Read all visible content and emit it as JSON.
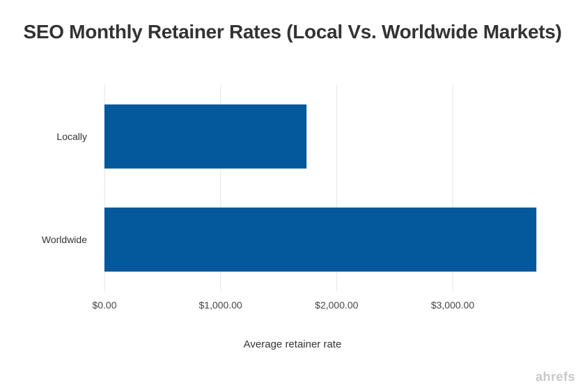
{
  "chart_data": {
    "type": "bar",
    "orientation": "horizontal",
    "title": "SEO Monthly Retainer Rates (Local Vs. Worldwide Markets)",
    "categories": [
      "Locally",
      "Worldwide"
    ],
    "values": [
      1741,
      3721
    ],
    "xlabel": "Average retainer rate",
    "ylabel": "",
    "xlim": [
      0,
      3750
    ],
    "x_ticks": [
      0,
      1000,
      2000,
      3000
    ],
    "x_tick_labels": [
      "$0.00",
      "$1,000.00",
      "$2,000.00",
      "$3,000.00"
    ],
    "grid": "vertical",
    "bar_color": "#03599c",
    "grid_color": "#e6e6e6"
  },
  "watermark": "ahrefs"
}
